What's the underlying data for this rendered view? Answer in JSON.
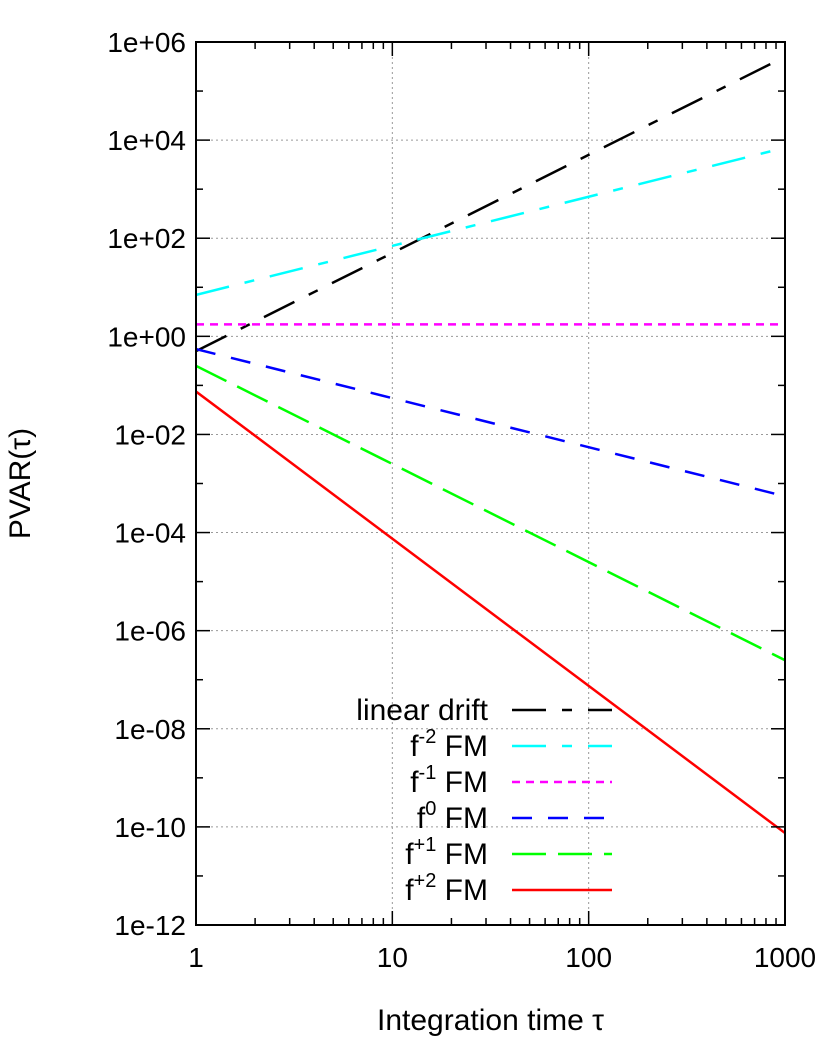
{
  "chart_data": {
    "type": "line",
    "xlabel": "Integration time τ",
    "ylabel": "PVAR(τ)",
    "x_scale": "log",
    "y_scale": "log",
    "xlim": [
      1,
      1000
    ],
    "ylim": [
      1e-12,
      1000000.0
    ],
    "x_ticks": [
      1,
      10,
      100,
      1000
    ],
    "x_tick_labels": [
      "1",
      "10",
      "100",
      "1000"
    ],
    "y_ticks": [
      1e-12,
      1e-10,
      1e-08,
      1e-06,
      0.0001,
      0.01,
      1,
      100.0,
      10000.0,
      1000000.0
    ],
    "y_tick_labels": [
      "1e-12",
      "1e-10",
      "1e-08",
      "1e-06",
      "1e-04",
      "1e-02",
      "1e+00",
      "1e+02",
      "1e+04",
      "1e+06"
    ],
    "grid": true,
    "legend_position": "bottom-center",
    "series": [
      {
        "name": "linear drift",
        "name_base": "linear drift",
        "name_sup": "",
        "name_rest": "",
        "color": "#000000",
        "dash": "34 16 10 16",
        "x": [
          1,
          1000
        ],
        "y": [
          0.5,
          500000
        ]
      },
      {
        "name": "f-2 FM",
        "name_base": "f",
        "name_sup": "-2",
        "name_rest": " FM",
        "color": "#00ffff",
        "dash": "34 16 10 16",
        "x": [
          1,
          1000
        ],
        "y": [
          7,
          7000
        ]
      },
      {
        "name": "f-1 FM",
        "name_base": "f",
        "name_sup": "-1",
        "name_rest": " FM",
        "color": "#ff00ff",
        "dash": "8 6",
        "x": [
          1,
          1000
        ],
        "y": [
          1.75,
          1.75
        ]
      },
      {
        "name": "f0 FM",
        "name_base": "f",
        "name_sup": "0",
        "name_rest": " FM",
        "color": "#0000ff",
        "dash": "20 16",
        "x": [
          1,
          1000
        ],
        "y": [
          0.55,
          0.00055
        ]
      },
      {
        "name": "f+1 FM",
        "name_base": "f",
        "name_sup": "+1",
        "name_rest": " FM",
        "color": "#00ff00",
        "dash": "34 12",
        "x": [
          1,
          1000
        ],
        "y": [
          0.25,
          2.5e-07
        ]
      },
      {
        "name": "f+2 FM",
        "name_base": "f",
        "name_sup": "+2",
        "name_rest": " FM",
        "color": "#ff0000",
        "dash": "",
        "x": [
          1,
          1000
        ],
        "y": [
          0.075,
          7.5e-11
        ]
      }
    ]
  }
}
